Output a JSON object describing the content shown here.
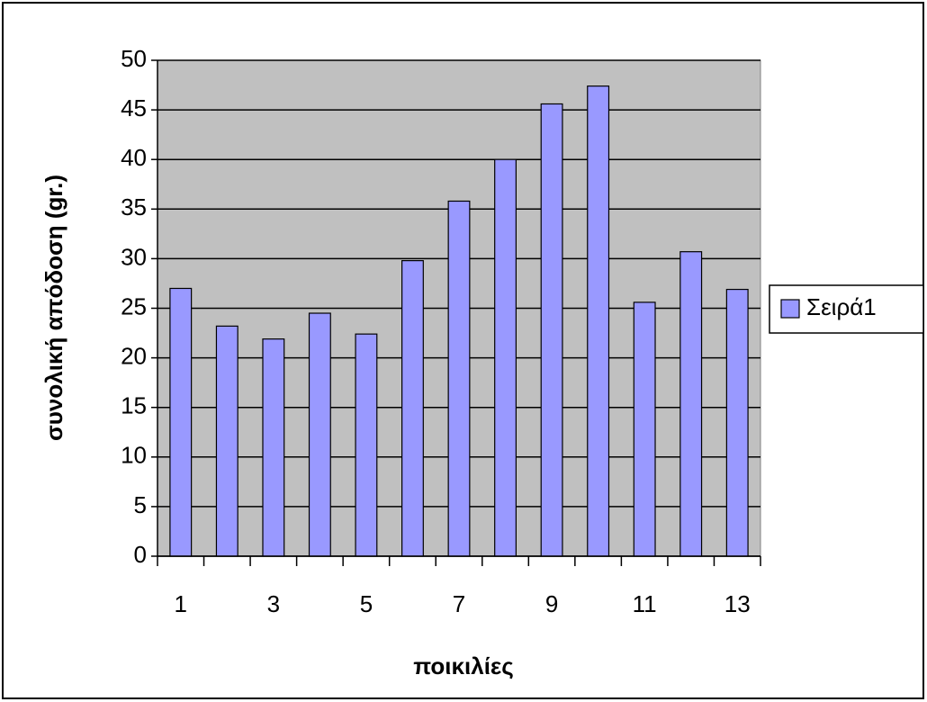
{
  "chart_data": {
    "type": "bar",
    "categories": [
      "1",
      null,
      "3",
      null,
      "5",
      null,
      "7",
      null,
      "9",
      null,
      "11",
      null,
      "13"
    ],
    "series": [
      {
        "name": "Σειρά1",
        "color": "#9999ff",
        "values": [
          27,
          23.2,
          21.9,
          24.5,
          22.4,
          29.8,
          35.8,
          40,
          45.6,
          47.4,
          25.6,
          30.7,
          26.9
        ]
      }
    ],
    "ylim": [
      0,
      50
    ],
    "yticks": [
      0,
      5,
      10,
      15,
      20,
      25,
      30,
      35,
      40,
      45,
      50
    ],
    "grid": true,
    "x_label": "ποικιλίες",
    "y_label": "συνολική απόδοση (gr.)",
    "legend": "right"
  }
}
